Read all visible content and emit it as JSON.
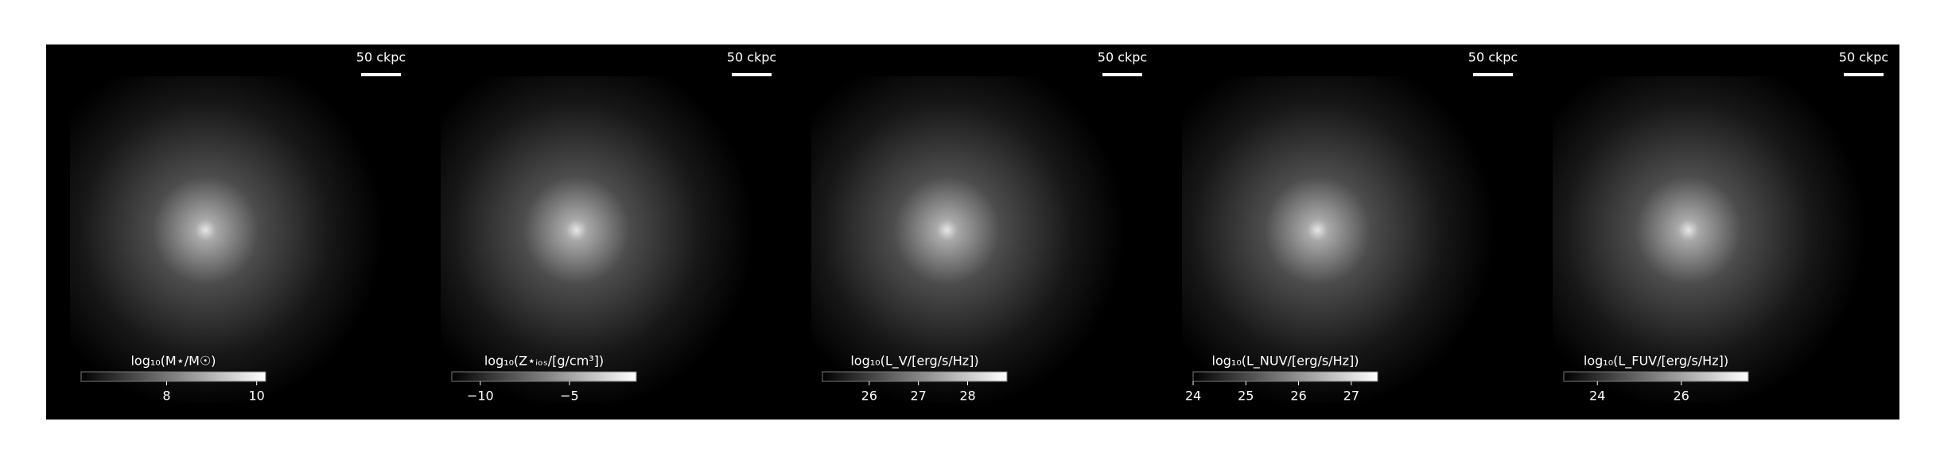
{
  "chart_data": {
    "type": "image-grid",
    "panels": [
      {
        "scale_bar": "50 ckpc",
        "colorbar_label": "log₁₀(M⋆/M☉)",
        "clim": [
          6.1,
          10.2
        ],
        "cticks": [
          8,
          10
        ]
      },
      {
        "scale_bar": "50 ckpc",
        "colorbar_label": "log₁₀(Z⋆ᵢₒₛ/[g/cm³])",
        "clim": [
          -11.6,
          -1.25
        ],
        "cticks": [
          {
            "value": -10,
            "label": "−10"
          },
          {
            "value": -5,
            "label": "−5"
          }
        ]
      },
      {
        "scale_bar": "50 ckpc",
        "colorbar_label": "log₁₀(L_V/[erg/s/Hz])",
        "clim": [
          25.05,
          28.8
        ],
        "cticks": [
          26,
          27,
          28
        ]
      },
      {
        "scale_bar": "50 ckpc",
        "colorbar_label": "log₁₀(L_NUV/[erg/s/Hz])",
        "clim": [
          24,
          27.5
        ],
        "cticks": [
          24,
          25,
          26,
          27
        ]
      },
      {
        "scale_bar": "50 ckpc",
        "colorbar_label": "log₁₀(L_FUV/[erg/s/Hz])",
        "clim": [
          23.2,
          27.6
        ],
        "cticks": [
          24,
          26
        ]
      }
    ]
  }
}
